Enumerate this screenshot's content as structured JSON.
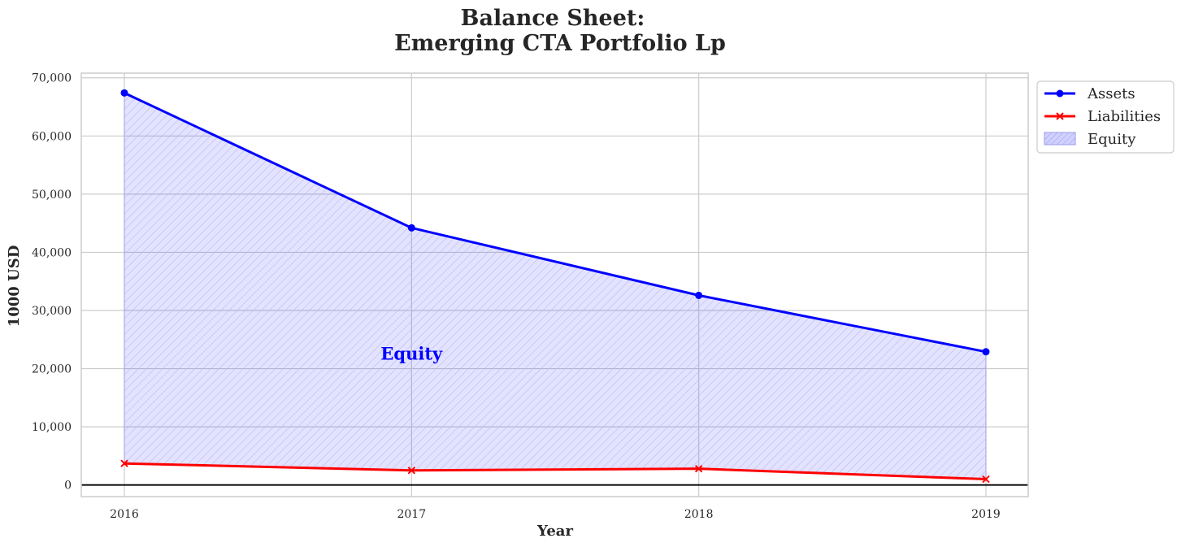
{
  "chart_data": {
    "type": "line",
    "title_line1": "Balance Sheet:",
    "title_line2": "Emerging CTA Portfolio Lp",
    "xlabel": "Year",
    "ylabel": "1000 USD",
    "x": [
      "2016",
      "2017",
      "2018",
      "2019"
    ],
    "ylim": [
      -2000,
      70800
    ],
    "yticks": [
      0,
      10000,
      20000,
      30000,
      40000,
      50000,
      60000,
      70000
    ],
    "ytick_labels": [
      "0",
      "10,000",
      "20,000",
      "30,000",
      "40,000",
      "50,000",
      "60,000",
      "70,000"
    ],
    "grid": true,
    "legend_position": "outside-top-right",
    "series": [
      {
        "name": "Assets",
        "values": [
          67400,
          44200,
          32600,
          22900
        ],
        "color": "#0000ff",
        "marker": "circle"
      },
      {
        "name": "Liabilities",
        "values": [
          3700,
          2500,
          2800,
          1000
        ],
        "color": "#ff0000",
        "marker": "x"
      }
    ],
    "fill": {
      "name": "Equity",
      "between": [
        "Assets",
        "Liabilities"
      ],
      "color": "#0000ff",
      "hatch": "diagonal"
    },
    "annotation": {
      "text": "Equity",
      "x": "2017",
      "y": 22500,
      "color": "#0000ff"
    }
  }
}
